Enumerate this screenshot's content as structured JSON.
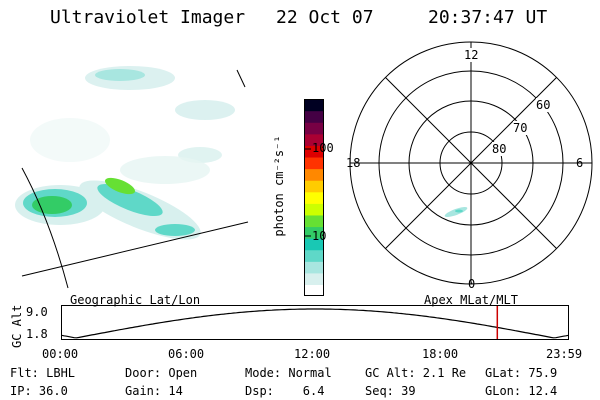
{
  "header": {
    "instrument": "Ultraviolet Imager",
    "date": "22 Oct 07",
    "time": "20:37:47 UT"
  },
  "colorbar": {
    "unit_label": "photon cm⁻²s⁻¹",
    "ticks": [
      {
        "label": "100",
        "value": 100
      },
      {
        "label": "10",
        "value": 10
      }
    ],
    "colors": [
      "#ffffff",
      "#d8f0ee",
      "#a8e6e0",
      "#5fd8c8",
      "#19c8b4",
      "#33cc66",
      "#66e033",
      "#ccff00",
      "#ffff00",
      "#ffcc00",
      "#ff8800",
      "#ff3300",
      "#dd0000",
      "#aa0033",
      "#770044",
      "#440044",
      "#000022"
    ]
  },
  "polar": {
    "mlt_labels": [
      {
        "label": "12",
        "pos": "top"
      },
      {
        "label": "6",
        "pos": "right"
      },
      {
        "label": "0",
        "pos": "bottom"
      },
      {
        "label": "18",
        "pos": "left"
      }
    ],
    "lat_labels": [
      "60",
      "70",
      "80"
    ]
  },
  "timeline": {
    "left_title": "Geographic Lat/Lon",
    "right_title": "Apex MLat/MLT",
    "ylabel": "GC Alt",
    "ymax_label": "9.0",
    "ymin_label": "1.8",
    "time_labels": [
      "00:00",
      "06:00",
      "12:00",
      "18:00",
      "23:59"
    ],
    "marker_time_fraction": 0.8596,
    "marker_color": "#cc0000"
  },
  "status": {
    "flt": "Flt: LBHL",
    "ip": "IP: 36.0",
    "door": "Door: Open",
    "gain": "Gain: 14",
    "mode": "Mode: Normal",
    "dsp": "Dsp:    6.4",
    "gcalt": "GC Alt: 2.1 Re",
    "seq": "Seq: 39",
    "glat": "GLat: 75.9",
    "glon": "GLon: 12.4"
  }
}
